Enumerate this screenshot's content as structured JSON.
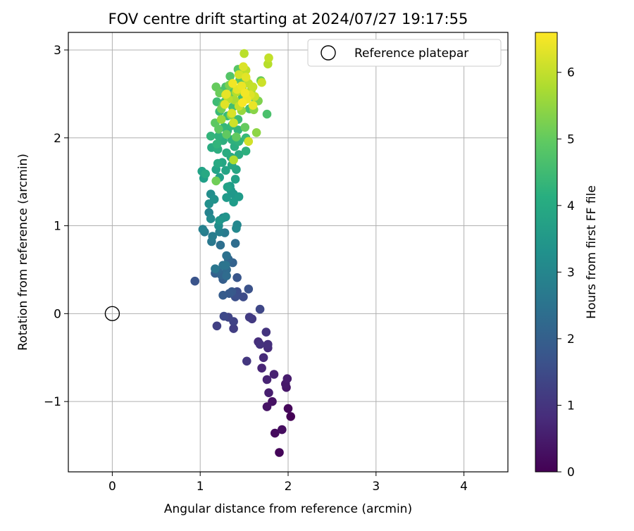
{
  "chart_data": {
    "type": "scatter",
    "title": "FOV centre drift starting at 2024/07/27 19:17:55",
    "xlabel": "Angular distance from reference (arcmin)",
    "ylabel": "Rotation from reference (arcmin)",
    "xlim": [
      -0.5,
      4.5
    ],
    "ylim": [
      -1.8,
      3.2
    ],
    "xticks": [
      0,
      1,
      2,
      3,
      4
    ],
    "yticks": [
      -1,
      0,
      1,
      2,
      3
    ],
    "xtick_labels": [
      "0",
      "1",
      "2",
      "3",
      "4"
    ],
    "ytick_labels": [
      "−1",
      "0",
      "1",
      "2",
      "3"
    ],
    "grid": true,
    "legend": {
      "position": "top-right",
      "entries": [
        "Reference platepar"
      ]
    },
    "colorbar": {
      "label": "Hours from first FF file",
      "colormap": "viridis",
      "range": [
        0,
        6.6
      ],
      "ticks": [
        0,
        1,
        2,
        3,
        4,
        5,
        6
      ],
      "tick_labels": [
        "0",
        "1",
        "2",
        "3",
        "4",
        "5",
        "6"
      ]
    },
    "reference": {
      "name": "Reference platepar",
      "x": 0,
      "y": 0,
      "marker": "hollow-circle",
      "color": "#000000"
    },
    "series": [
      {
        "points": [
          [
            2.03,
            -1.17,
            0.02
          ],
          [
            1.9,
            -1.58,
            0.08
          ],
          [
            2.0,
            -1.08,
            0.12
          ],
          [
            1.85,
            -1.36,
            0.18
          ],
          [
            1.93,
            -1.32,
            0.22
          ],
          [
            1.82,
            -1.0,
            0.3
          ],
          [
            1.76,
            -1.06,
            0.35
          ],
          [
            1.98,
            -0.84,
            0.4
          ],
          [
            1.97,
            -0.8,
            0.45
          ],
          [
            1.99,
            -0.74,
            0.5
          ],
          [
            1.78,
            -0.9,
            0.55
          ],
          [
            1.84,
            -0.69,
            0.6
          ],
          [
            1.76,
            -0.75,
            0.66
          ],
          [
            1.7,
            -0.62,
            0.7
          ],
          [
            1.72,
            -0.5,
            0.78
          ],
          [
            1.77,
            -0.39,
            0.82
          ],
          [
            1.66,
            -0.32,
            0.86
          ],
          [
            1.77,
            -0.35,
            0.9
          ],
          [
            1.68,
            -0.35,
            0.95
          ],
          [
            1.75,
            -0.21,
            1.0
          ],
          [
            1.53,
            -0.54,
            1.05
          ],
          [
            1.59,
            -0.06,
            1.1
          ],
          [
            1.56,
            -0.04,
            1.15
          ],
          [
            1.38,
            -0.17,
            1.2
          ],
          [
            1.19,
            -0.14,
            1.25
          ],
          [
            1.38,
            -0.09,
            1.3
          ],
          [
            1.32,
            -0.04,
            1.35
          ],
          [
            1.68,
            0.05,
            1.4
          ],
          [
            1.27,
            -0.03,
            1.45
          ],
          [
            1.49,
            0.19,
            1.5
          ],
          [
            1.42,
            0.25,
            1.55
          ],
          [
            1.4,
            0.19,
            1.6
          ],
          [
            1.55,
            0.28,
            1.65
          ],
          [
            0.94,
            0.37,
            1.7
          ],
          [
            1.42,
            0.41,
            1.75
          ],
          [
            1.36,
            0.25,
            1.8
          ],
          [
            1.33,
            0.23,
            1.85
          ],
          [
            1.26,
            0.21,
            1.9
          ],
          [
            1.26,
            0.39,
            1.95
          ],
          [
            1.17,
            0.46,
            2.0
          ],
          [
            1.37,
            0.58,
            2.05
          ],
          [
            1.24,
            0.44,
            2.1
          ],
          [
            1.32,
            0.62,
            2.15
          ],
          [
            1.2,
            0.49,
            2.2
          ],
          [
            1.3,
            0.5,
            2.25
          ],
          [
            1.3,
            0.43,
            2.3
          ],
          [
            1.4,
            0.8,
            2.35
          ],
          [
            1.23,
            0.78,
            2.4
          ],
          [
            1.3,
            0.66,
            2.45
          ],
          [
            1.26,
            0.55,
            2.5
          ],
          [
            1.29,
            0.55,
            2.55
          ],
          [
            1.17,
            0.51,
            2.6
          ],
          [
            1.13,
            0.82,
            2.65
          ],
          [
            1.28,
            0.92,
            2.7
          ],
          [
            1.05,
            0.93,
            2.75
          ],
          [
            1.14,
            0.88,
            2.8
          ],
          [
            1.22,
            0.93,
            2.85
          ],
          [
            1.03,
            0.96,
            2.9
          ],
          [
            1.1,
            1.15,
            2.95
          ],
          [
            1.26,
            1.09,
            3.0
          ],
          [
            1.42,
            1.01,
            3.05
          ],
          [
            1.41,
            0.97,
            3.1
          ],
          [
            1.12,
            1.08,
            3.15
          ],
          [
            1.21,
            1.0,
            3.2
          ],
          [
            1.12,
            1.36,
            3.25
          ],
          [
            1.1,
            1.25,
            3.3
          ],
          [
            1.16,
            1.3,
            3.35
          ],
          [
            1.29,
            1.1,
            3.4
          ],
          [
            1.22,
            1.06,
            3.45
          ],
          [
            1.35,
            1.4,
            3.5
          ],
          [
            1.38,
            1.36,
            3.52
          ],
          [
            1.3,
            1.32,
            3.55
          ],
          [
            1.44,
            1.33,
            3.6
          ],
          [
            1.38,
            1.27,
            3.62
          ],
          [
            1.34,
            1.45,
            3.65
          ],
          [
            1.04,
            1.54,
            3.7
          ],
          [
            1.22,
            1.55,
            3.72
          ],
          [
            1.4,
            1.53,
            3.75
          ],
          [
            1.31,
            1.44,
            3.78
          ],
          [
            1.02,
            1.62,
            3.8
          ],
          [
            1.18,
            1.64,
            3.82
          ],
          [
            1.29,
            1.63,
            3.85
          ],
          [
            1.41,
            1.64,
            3.88
          ],
          [
            1.25,
            1.72,
            3.9
          ],
          [
            1.36,
            1.69,
            3.92
          ],
          [
            1.06,
            1.59,
            3.95
          ],
          [
            1.2,
            1.71,
            3.98
          ],
          [
            1.35,
            1.78,
            4.0
          ],
          [
            1.44,
            1.81,
            4.02
          ],
          [
            1.13,
            1.89,
            4.05
          ],
          [
            1.3,
            1.83,
            4.08
          ],
          [
            1.39,
            1.9,
            4.1
          ],
          [
            1.2,
            1.87,
            4.12
          ],
          [
            1.26,
            1.97,
            4.15
          ],
          [
            1.52,
            1.85,
            4.18
          ],
          [
            1.36,
            1.98,
            4.2
          ],
          [
            1.21,
            2.02,
            4.22
          ],
          [
            1.44,
            1.96,
            4.25
          ],
          [
            1.31,
            2.08,
            4.28
          ],
          [
            1.19,
            1.93,
            4.3
          ],
          [
            1.12,
            2.02,
            4.32
          ],
          [
            1.43,
            2.09,
            4.35
          ],
          [
            1.27,
            2.12,
            4.38
          ],
          [
            1.36,
            2.14,
            4.4
          ],
          [
            1.52,
            2.0,
            4.42
          ],
          [
            1.22,
            2.3,
            4.45
          ],
          [
            1.31,
            2.25,
            4.48
          ],
          [
            1.43,
            2.21,
            4.5
          ],
          [
            1.19,
            2.41,
            4.52
          ],
          [
            1.28,
            2.41,
            4.55
          ],
          [
            1.37,
            2.35,
            4.58
          ],
          [
            1.48,
            2.46,
            4.6
          ],
          [
            1.56,
            2.33,
            4.62
          ],
          [
            1.25,
            2.53,
            4.65
          ],
          [
            1.76,
            2.27,
            4.68
          ],
          [
            1.29,
            2.58,
            4.7
          ],
          [
            1.38,
            2.55,
            4.72
          ],
          [
            1.5,
            2.5,
            4.75
          ],
          [
            1.63,
            2.42,
            4.78
          ],
          [
            1.34,
            2.7,
            4.8
          ],
          [
            1.45,
            2.66,
            4.82
          ],
          [
            1.43,
            2.78,
            4.85
          ],
          [
            1.26,
            2.38,
            4.88
          ],
          [
            1.17,
            2.17,
            4.9
          ],
          [
            1.21,
            2.1,
            4.92
          ],
          [
            1.3,
            2.04,
            4.95
          ],
          [
            1.41,
            2.01,
            4.98
          ],
          [
            1.51,
            2.12,
            5.0
          ],
          [
            1.18,
            2.58,
            5.02
          ],
          [
            1.69,
            2.65,
            5.05
          ],
          [
            1.22,
            2.51,
            5.08
          ],
          [
            1.34,
            2.48,
            5.1
          ],
          [
            1.45,
            2.39,
            5.12
          ],
          [
            1.18,
            1.51,
            5.15
          ],
          [
            1.24,
            2.33,
            5.2
          ],
          [
            1.33,
            2.6,
            5.25
          ],
          [
            1.66,
            2.42,
            5.3
          ],
          [
            1.52,
            2.68,
            5.35
          ],
          [
            1.61,
            2.32,
            5.4
          ],
          [
            1.64,
            2.06,
            5.45
          ],
          [
            1.35,
            2.26,
            5.5
          ],
          [
            1.47,
            2.31,
            5.55
          ],
          [
            1.24,
            2.21,
            5.6
          ],
          [
            1.48,
            2.55,
            5.65
          ],
          [
            1.58,
            2.54,
            5.7
          ],
          [
            1.39,
            2.43,
            5.75
          ],
          [
            1.38,
            1.75,
            5.8
          ],
          [
            1.41,
            2.52,
            5.85
          ],
          [
            1.77,
            2.84,
            5.88
          ],
          [
            1.32,
            2.44,
            5.9
          ],
          [
            1.5,
            2.96,
            5.92
          ],
          [
            1.52,
            2.77,
            5.95
          ],
          [
            1.55,
            2.62,
            5.98
          ],
          [
            1.78,
            2.91,
            6.0
          ],
          [
            1.6,
            2.58,
            6.02
          ],
          [
            1.44,
            2.36,
            6.05
          ],
          [
            1.62,
            2.47,
            6.08
          ],
          [
            1.7,
            2.63,
            6.1
          ],
          [
            1.38,
            2.17,
            6.12
          ],
          [
            1.55,
            1.96,
            6.15
          ],
          [
            1.44,
            2.72,
            6.18
          ],
          [
            1.29,
            2.49,
            6.2
          ],
          [
            1.36,
            2.28,
            6.22
          ],
          [
            1.49,
            2.81,
            6.25
          ],
          [
            1.57,
            2.49,
            6.28
          ],
          [
            1.28,
            2.38,
            6.3
          ],
          [
            1.52,
            2.69,
            6.32
          ],
          [
            1.42,
            2.55,
            6.35
          ],
          [
            1.3,
            2.5,
            6.38
          ],
          [
            1.6,
            2.37,
            6.4
          ],
          [
            1.47,
            2.59,
            6.42
          ],
          [
            1.53,
            2.44,
            6.45
          ],
          [
            1.37,
            2.62,
            6.48
          ],
          [
            1.51,
            2.51,
            6.5
          ],
          [
            1.48,
            2.4,
            6.55
          ]
        ]
      }
    ]
  }
}
